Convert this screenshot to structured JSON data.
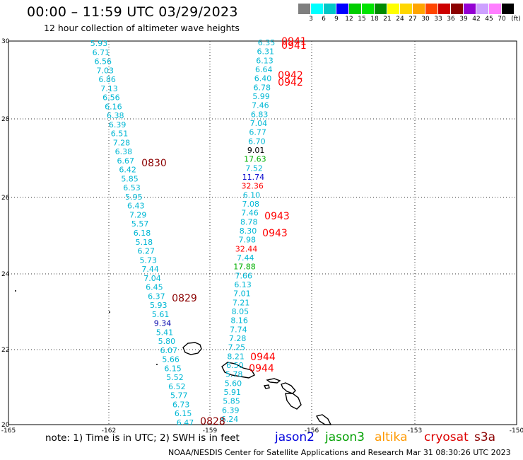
{
  "header": {
    "title": "00:00 – 11:59 UTC 03/29/2023",
    "subtitle": "12 hour collection of altimeter wave heights"
  },
  "colorbar": {
    "unit": "(ft)",
    "colors": [
      "#7f7f7f",
      "#00ffff",
      "#00c8c8",
      "#0000ff",
      "#00cd00",
      "#00e400",
      "#008b00",
      "#ffff00",
      "#ffd700",
      "#ffa500",
      "#ff4500",
      "#cd0000",
      "#8b0000",
      "#9400d3",
      "#cda0ff",
      "#ff7fff",
      "#000000"
    ],
    "labels": [
      "3",
      "6",
      "9",
      "12",
      "15",
      "18",
      "21",
      "24",
      "27",
      "30",
      "33",
      "36",
      "39",
      "42",
      "45",
      "70"
    ]
  },
  "axes": {
    "lat_labels": [
      "30",
      "28",
      "26",
      "24",
      "22",
      "20"
    ],
    "lon_labels": [
      "-165",
      "-162",
      "-159",
      "-156",
      "-153",
      "-150"
    ]
  },
  "tracks": {
    "west": [
      "5.93",
      "6.71",
      "6.56",
      "7.03",
      "6.86",
      "7.13",
      "6.56",
      "6.16",
      "6.38",
      "6.39",
      "6.51",
      "7.28",
      "6.38",
      "6.67",
      "6.42",
      "5.85",
      "6.53",
      "5.95",
      "6.43",
      "7.29",
      "5.57",
      "6.18",
      "5.18",
      "6.27",
      "5.73",
      "7.44",
      "7.04",
      "6.45",
      "6.37",
      "5.93",
      "5.61",
      "9.34",
      "5.41",
      "5.80",
      "6.07",
      "5.66",
      "6.15",
      "5.52",
      "6.52",
      "5.77",
      "6.73",
      "6.15",
      "6.47"
    ],
    "east": [
      "6.35",
      "6.31",
      "6.13",
      "6.64",
      "6.40",
      "6.78",
      "5.99",
      "7.46",
      "6.83",
      "7.04",
      "6.77",
      "6.70",
      "9.01",
      "17.63",
      "7.52",
      "11.74",
      "32.36",
      "6.10",
      "7.08",
      "7.46",
      "8.78",
      "8.30",
      "7.98",
      "32.44",
      "7.44",
      "17.88",
      "7.66",
      "6.13",
      "7.01",
      "7.21",
      "8.05",
      "8.16",
      "7.74",
      "7.28",
      "7.25",
      "8.21",
      "6.50",
      "5.78",
      "5.60",
      "5.91",
      "5.85",
      "6.39",
      "6.24"
    ]
  },
  "pass_times": [
    "0941",
    "0941",
    "0942",
    "0942",
    "0830",
    "0943",
    "0943",
    "0829",
    "0944",
    "0944",
    "0828"
  ],
  "note": "note: 1) Time is in UTC; 2) SWH is in feet",
  "satellites": [
    {
      "name": "jason2",
      "color": "#0000dd"
    },
    {
      "name": "jason3",
      "color": "#00a000"
    },
    {
      "name": "altika",
      "color": "#ff9900"
    },
    {
      "name": "cryosat",
      "color": "#dd0000"
    },
    {
      "name": "s3a",
      "color": "#8b0000"
    }
  ],
  "footer": "NOAA/NESDIS Center for Satellite Applications and Research   Mar 31 08:30:26 UTC 2023"
}
